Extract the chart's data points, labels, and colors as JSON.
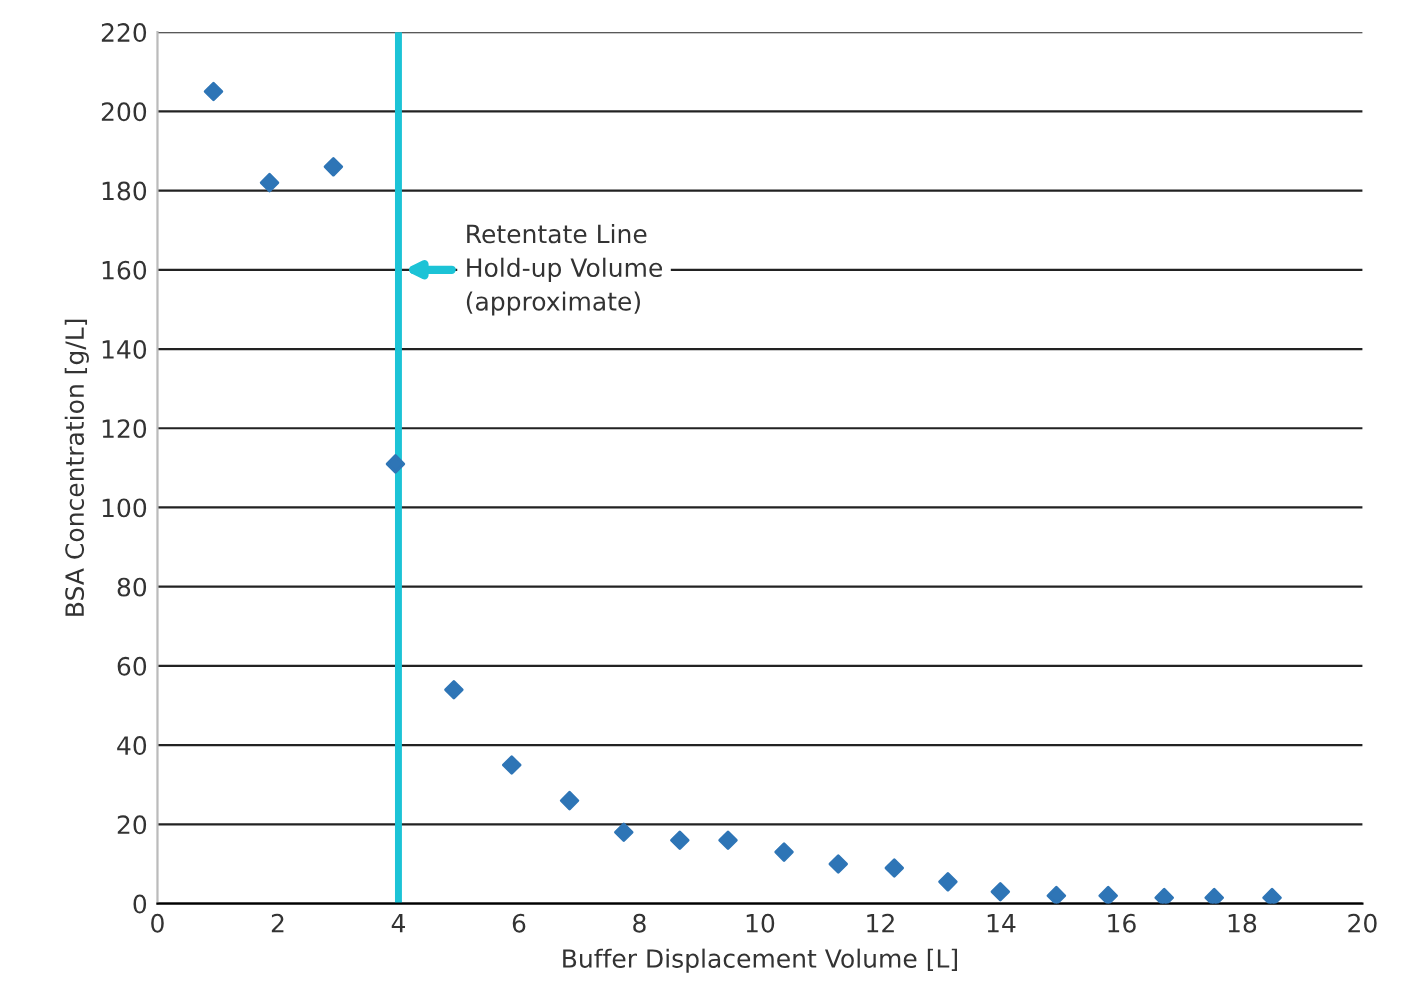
{
  "chart_data": {
    "type": "scatter",
    "xlabel": "Buffer Displacement Volume [L]",
    "ylabel": "BSA Concentration [g/L]",
    "x": [
      0.93,
      1.86,
      2.92,
      3.95,
      4.92,
      5.88,
      6.84,
      7.74,
      8.67,
      9.47,
      10.4,
      11.3,
      12.23,
      13.12,
      13.99,
      14.92,
      15.78,
      16.71,
      17.54,
      18.5
    ],
    "series": [
      {
        "color": "#2e75b6",
        "values": [
          205,
          182,
          186,
          111,
          54,
          35,
          26,
          18,
          16,
          16,
          13,
          10,
          9,
          5.5,
          3,
          2,
          2,
          1.5,
          1.5,
          1.5
        ]
      }
    ],
    "marker": "diamond",
    "grid": "y",
    "legend": false,
    "xlim": [
      0,
      20
    ],
    "xticks": [
      0,
      2,
      4,
      6,
      8,
      10,
      12,
      14,
      16,
      18,
      20
    ],
    "ylim": [
      0,
      220
    ],
    "yticks": [
      0,
      20,
      40,
      60,
      80,
      100,
      120,
      140,
      160,
      180,
      200,
      220
    ],
    "ref_lines": [
      {
        "axis": "x",
        "value": 4,
        "color": "#1cc3d6"
      }
    ],
    "annotations": [
      {
        "text": "Retentate Line\nHold-up Volume\n(approximate)",
        "x": 4,
        "y": 160
      }
    ]
  }
}
